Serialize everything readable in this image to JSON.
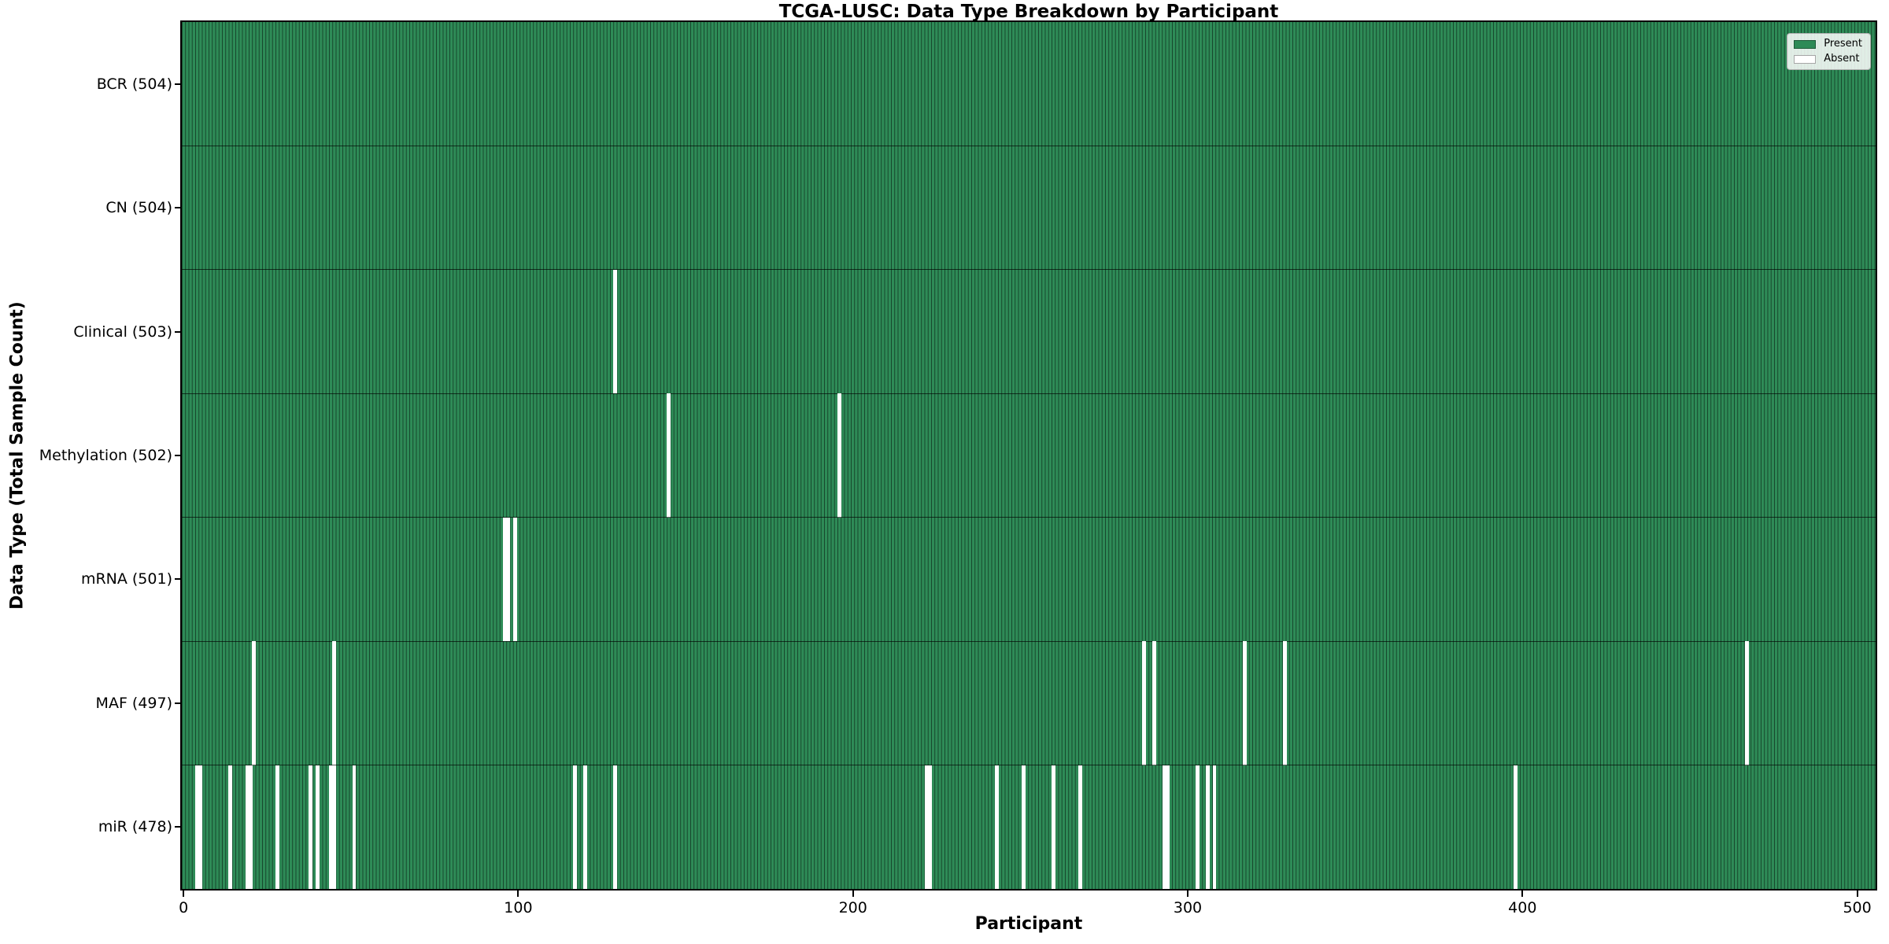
{
  "colors": {
    "present": "#2E8B57",
    "absent": "#FFFFFF",
    "cell_edge": "#16452B",
    "axis": "#000000",
    "row_separator": "rgba(0,0,0,0.65)",
    "legend_bg": "rgba(255,255,255,0.85)",
    "legend_border": "#B0B0B0"
  },
  "chart_data": {
    "type": "heatmap",
    "title": "TCGA-LUSC: Data Type Breakdown by Participant",
    "xlabel": "Participant",
    "ylabel": "Data Type (Total Sample Count)",
    "x_ticks": [
      0,
      100,
      200,
      300,
      400,
      500
    ],
    "x_range": [
      -0.5,
      505.5
    ],
    "n_participants": 504,
    "grid": false,
    "legend": {
      "present": "Present",
      "absent": "Absent",
      "position": "upper right"
    },
    "rows": [
      {
        "label": "BCR",
        "count": 504,
        "display": "BCR (504)",
        "absent_participants": []
      },
      {
        "label": "CN",
        "count": 504,
        "display": "CN (504)",
        "absent_participants": []
      },
      {
        "label": "Clinical",
        "count": 503,
        "display": "Clinical (503)",
        "absent_participants": [
          129
        ]
      },
      {
        "label": "Methylation",
        "count": 502,
        "display": "Methylation (502)",
        "absent_participants": [
          145,
          196
        ]
      },
      {
        "label": "mRNA",
        "count": 501,
        "display": "mRNA (501)",
        "absent_participants": [
          96,
          97,
          99
        ]
      },
      {
        "label": "MAF",
        "count": 497,
        "display": "MAF (497)",
        "absent_participants": [
          21,
          45,
          287,
          290,
          317,
          329,
          467
        ]
      },
      {
        "label": "miR",
        "count": 478,
        "display": "miR (478)",
        "absent_participants": [
          4,
          5,
          14,
          19,
          20,
          28,
          38,
          40,
          44,
          45,
          51,
          117,
          120,
          129,
          222,
          223,
          243,
          251,
          260,
          268,
          293,
          294,
          303,
          306,
          308,
          398
        ]
      }
    ]
  }
}
